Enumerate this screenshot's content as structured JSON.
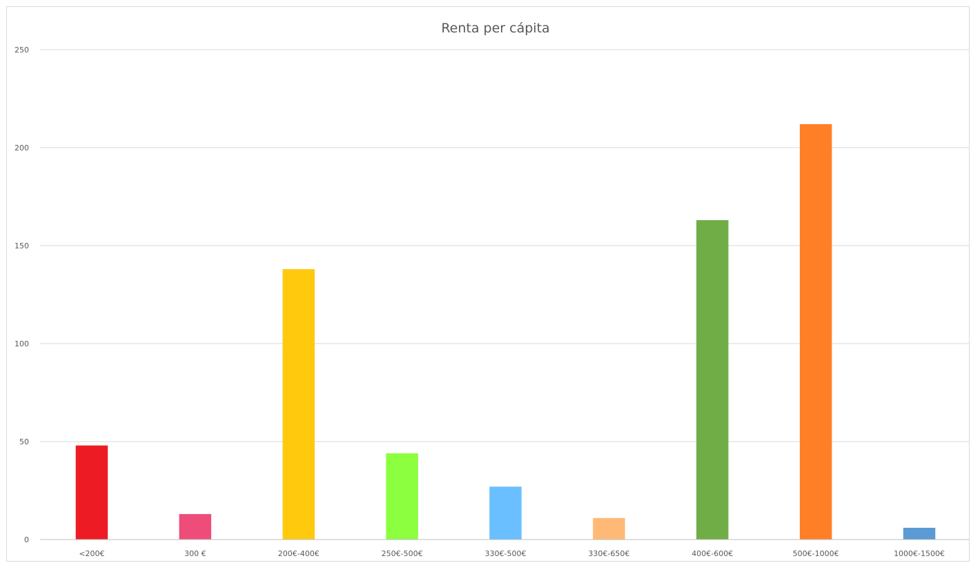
{
  "chart_data": {
    "type": "bar",
    "title": "Renta per cápita",
    "xlabel": "",
    "ylabel": "",
    "categories": [
      "<200€",
      "300 €",
      "200€-400€",
      "250€-500€",
      "330€-500€",
      "330€-650€",
      "400€-600€",
      "500€-1000€",
      "1000€-1500€"
    ],
    "values": [
      48,
      13,
      138,
      44,
      27,
      11,
      163,
      212,
      6
    ],
    "colors": [
      "#ED1C24",
      "#EE4D7A",
      "#FFC90E",
      "#8CFF3F",
      "#69BFFF",
      "#FFB977",
      "#70AD47",
      "#FF7F27",
      "#5B9BD5"
    ],
    "ylim": [
      0,
      250
    ],
    "yticks": [
      0,
      50,
      100,
      150,
      200,
      250
    ],
    "grid": true,
    "legend": "none",
    "gridline_color": "#d9d9d9",
    "axis_color": "#bfbfbf"
  }
}
